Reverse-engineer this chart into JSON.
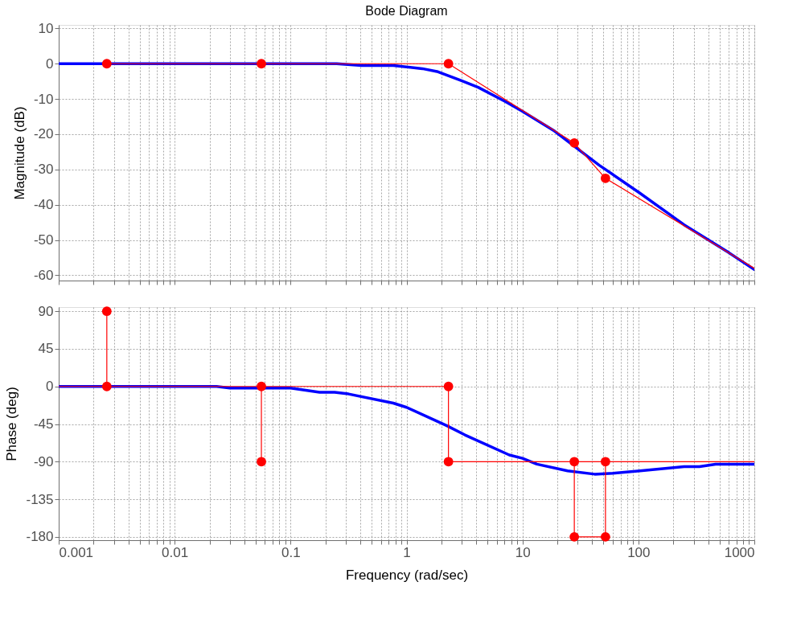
{
  "chart_data": [
    {
      "type": "line",
      "title": "Bode Diagram",
      "ylabel": "Magnitude (dB)",
      "log": "x",
      "grid": true,
      "tick_labels": "y",
      "line_style": "solid",
      "xlim": [
        0.001,
        1000
      ],
      "ylim": [
        -61.5,
        11
      ],
      "xticks": [
        0.001,
        {
          "value": 0.002,
          "label": null
        },
        {
          "value": 0.003,
          "label": null
        },
        {
          "value": 0.004,
          "label": null
        },
        {
          "value": 0.005,
          "label": null
        },
        {
          "value": 0.006,
          "label": null
        },
        {
          "value": 0.007,
          "label": null
        },
        {
          "value": 0.008,
          "label": null
        },
        {
          "value": 0.009,
          "label": null
        },
        0.01,
        {
          "value": 0.02,
          "label": null
        },
        {
          "value": 0.03,
          "label": null
        },
        {
          "value": 0.04,
          "label": null
        },
        {
          "value": 0.05,
          "label": null
        },
        {
          "value": 0.06,
          "label": null
        },
        {
          "value": 0.07,
          "label": null
        },
        {
          "value": 0.08,
          "label": null
        },
        {
          "value": 0.09,
          "label": null
        },
        0.1,
        {
          "value": 0.2,
          "label": null
        },
        {
          "value": 0.3,
          "label": null
        },
        {
          "value": 0.4,
          "label": null
        },
        {
          "value": 0.5,
          "label": null
        },
        {
          "value": 0.6,
          "label": null
        },
        {
          "value": 0.7,
          "label": null
        },
        {
          "value": 0.8,
          "label": null
        },
        {
          "value": 0.9,
          "label": null
        },
        1,
        {
          "value": 2,
          "label": null
        },
        {
          "value": 3,
          "label": null
        },
        {
          "value": 4,
          "label": null
        },
        {
          "value": 5,
          "label": null
        },
        {
          "value": 6,
          "label": null
        },
        {
          "value": 7,
          "label": null
        },
        {
          "value": 8,
          "label": null
        },
        {
          "value": 9,
          "label": null
        },
        10,
        {
          "value": 20,
          "label": null
        },
        {
          "value": 30,
          "label": null
        },
        {
          "value": 40,
          "label": null
        },
        {
          "value": 50,
          "label": null
        },
        {
          "value": 60,
          "label": null
        },
        {
          "value": 70,
          "label": null
        },
        {
          "value": 80,
          "label": null
        },
        {
          "value": 90,
          "label": null
        },
        100,
        {
          "value": 200,
          "label": null
        },
        {
          "value": 300,
          "label": null
        },
        {
          "value": 400,
          "label": null
        },
        {
          "value": 500,
          "label": null
        },
        {
          "value": 600,
          "label": null
        },
        {
          "value": 700,
          "label": null
        },
        {
          "value": 800,
          "label": null
        },
        {
          "value": 900,
          "label": null
        },
        1000
      ],
      "yticks": [
        -60,
        -50,
        -40,
        -30,
        -20,
        -10,
        0,
        10
      ],
      "series": [
        {
          "color": "#0000ff",
          "marker": "none",
          "x": [
            0.001,
            0.25,
            0.41,
            0.77,
            1.37,
            1.87,
            2.92,
            4.15,
            7.1,
            10,
            18.9,
            29.6,
            46,
            103,
            248,
            603,
            1000
          ],
          "values": [
            0,
            0,
            -0.5,
            -0.5,
            -1.4,
            -2.3,
            -4.7,
            -6.7,
            -10.7,
            -13.5,
            -19.1,
            -24,
            -28.8,
            -36.7,
            -45.7,
            -53.6,
            -58.4
          ]
        },
        {
          "color": "#ff0000",
          "marker": "none",
          "x": [
            0.0026,
            0.056,
            2.3,
            28,
            52,
            1000
          ],
          "values": [
            0,
            0,
            0,
            -22.5,
            -32.5,
            -58
          ]
        },
        {
          "type": "scatter",
          "color": "#ff0000",
          "marker": "circle",
          "x": [
            0.0026,
            0.056,
            2.3,
            28,
            52
          ],
          "values": [
            0,
            0,
            0,
            -22.5,
            -32.5
          ]
        }
      ]
    },
    {
      "type": "line",
      "xlabel": "Frequency  (rad/sec)",
      "ylabel": "Phase (deg)",
      "log": "x",
      "grid": true,
      "line_style": "solid",
      "xlim": [
        0.001,
        1000
      ],
      "ylim": [
        -184,
        95
      ],
      "xticks": [
        0.001,
        {
          "value": 0.002,
          "label": null
        },
        {
          "value": 0.003,
          "label": null
        },
        {
          "value": 0.004,
          "label": null
        },
        {
          "value": 0.005,
          "label": null
        },
        {
          "value": 0.006,
          "label": null
        },
        {
          "value": 0.007,
          "label": null
        },
        {
          "value": 0.008,
          "label": null
        },
        {
          "value": 0.009,
          "label": null
        },
        0.01,
        {
          "value": 0.02,
          "label": null
        },
        {
          "value": 0.03,
          "label": null
        },
        {
          "value": 0.04,
          "label": null
        },
        {
          "value": 0.05,
          "label": null
        },
        {
          "value": 0.06,
          "label": null
        },
        {
          "value": 0.07,
          "label": null
        },
        {
          "value": 0.08,
          "label": null
        },
        {
          "value": 0.09,
          "label": null
        },
        0.1,
        {
          "value": 0.2,
          "label": null
        },
        {
          "value": 0.3,
          "label": null
        },
        {
          "value": 0.4,
          "label": null
        },
        {
          "value": 0.5,
          "label": null
        },
        {
          "value": 0.6,
          "label": null
        },
        {
          "value": 0.7,
          "label": null
        },
        {
          "value": 0.8,
          "label": null
        },
        {
          "value": 0.9,
          "label": null
        },
        1,
        {
          "value": 2,
          "label": null
        },
        {
          "value": 3,
          "label": null
        },
        {
          "value": 4,
          "label": null
        },
        {
          "value": 5,
          "label": null
        },
        {
          "value": 6,
          "label": null
        },
        {
          "value": 7,
          "label": null
        },
        {
          "value": 8,
          "label": null
        },
        {
          "value": 9,
          "label": null
        },
        10,
        {
          "value": 20,
          "label": null
        },
        {
          "value": 30,
          "label": null
        },
        {
          "value": 40,
          "label": null
        },
        {
          "value": 50,
          "label": null
        },
        {
          "value": 60,
          "label": null
        },
        {
          "value": 70,
          "label": null
        },
        {
          "value": 80,
          "label": null
        },
        {
          "value": 90,
          "label": null
        },
        100,
        {
          "value": 200,
          "label": null
        },
        {
          "value": 300,
          "label": null
        },
        {
          "value": 400,
          "label": null
        },
        {
          "value": 500,
          "label": null
        },
        {
          "value": 600,
          "label": null
        },
        {
          "value": 700,
          "label": null
        },
        {
          "value": 800,
          "label": null
        },
        {
          "value": 900,
          "label": null
        },
        1000
      ],
      "yticks": [
        -180,
        -135,
        -90,
        -45,
        0,
        45,
        90
      ],
      "series": [
        {
          "color": "#0000ff",
          "marker": "none",
          "x": [
            0.001,
            0.023,
            0.03,
            0.1,
            0.178,
            0.24,
            0.316,
            0.77,
            1,
            2.23,
            3.19,
            7.7,
            10,
            13.3,
            24.5,
            42,
            60,
            103,
            248,
            336,
            463,
            1000
          ],
          "values": [
            0,
            0,
            -2,
            -2,
            -7,
            -7,
            -9,
            -20,
            -25,
            -47,
            -58,
            -82,
            -86,
            -93,
            -101,
            -105,
            -104,
            -101,
            -96,
            -96,
            -93,
            -93
          ]
        },
        {
          "color": "#ff0000",
          "marker": "none",
          "x": [
            0.001,
            2.3
          ],
          "values": [
            0,
            0
          ]
        },
        {
          "color": "#ff0000",
          "marker": "none",
          "x": [
            0.0026,
            0.0026
          ],
          "values": [
            90,
            0
          ]
        },
        {
          "color": "#ff0000",
          "marker": "none",
          "x": [
            0.056,
            0.056
          ],
          "values": [
            0,
            -90
          ]
        },
        {
          "color": "#ff0000",
          "marker": "none",
          "x": [
            2.3,
            2.3,
            1000
          ],
          "values": [
            0,
            -90,
            -90
          ]
        },
        {
          "color": "#ff0000",
          "marker": "none",
          "x": [
            28,
            28,
            52,
            52
          ],
          "values": [
            -90,
            -180,
            -180,
            -90
          ]
        },
        {
          "type": "scatter",
          "color": "#ff0000",
          "marker": "circle",
          "x": [
            0.0026,
            0.0026,
            0.056,
            0.056,
            2.3,
            2.3,
            28,
            28,
            52,
            52
          ],
          "values": [
            90,
            0,
            0,
            -90,
            0,
            -90,
            -90,
            -180,
            -90,
            -180
          ]
        }
      ]
    }
  ]
}
